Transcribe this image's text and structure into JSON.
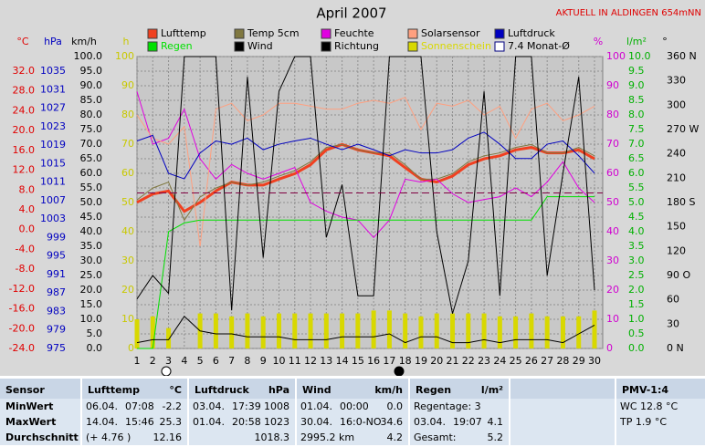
{
  "chart_data": {
    "type": "line",
    "title": "April 2007",
    "annotation": "AKTUELL IN ALDINGEN 654mNN",
    "x": [
      1,
      2,
      3,
      4,
      5,
      6,
      7,
      8,
      9,
      10,
      11,
      12,
      13,
      14,
      15,
      16,
      17,
      18,
      19,
      20,
      21,
      22,
      23,
      24,
      25,
      26,
      27,
      28,
      29,
      30
    ],
    "xlim": [
      1,
      30
    ],
    "xticks": [
      1,
      2,
      3,
      4,
      5,
      6,
      7,
      8,
      9,
      10,
      11,
      12,
      13,
      14,
      15,
      16,
      17,
      18,
      19,
      20,
      21,
      22,
      23,
      24,
      25,
      26,
      27,
      28,
      29,
      30
    ],
    "grid": true,
    "axes": {
      "temp": {
        "label": "°C",
        "color": "#e00000",
        "lim": [
          -24,
          32
        ],
        "ticks": [
          {
            "value": 32,
            "label": "32.0"
          },
          {
            "value": 28,
            "label": "28.0"
          },
          {
            "value": 24,
            "label": "24.0"
          },
          {
            "value": 20,
            "label": "20.0"
          },
          {
            "value": 16,
            "label": "16.0"
          },
          {
            "value": 12,
            "label": "12.0"
          },
          {
            "value": 8,
            "label": "8.0"
          },
          {
            "value": 4,
            "label": "4.0"
          },
          {
            "value": 0,
            "label": "0.0"
          },
          {
            "value": -4,
            "label": "-4.0"
          },
          {
            "value": -8,
            "label": "-8.0"
          },
          {
            "value": -12,
            "label": "-12.0"
          },
          {
            "value": -16,
            "label": "-16.0"
          },
          {
            "value": -20,
            "label": "-20.0"
          },
          {
            "value": -24,
            "label": "-24.0"
          }
        ]
      },
      "hpa": {
        "label": "hPa",
        "color": "#0000c0",
        "lim": [
          975,
          1035
        ],
        "ticks": [
          1035,
          1031,
          1027,
          1023,
          1019,
          1015,
          1011,
          1007,
          1003,
          999,
          995,
          991,
          987,
          983,
          979,
          975
        ]
      },
      "kmh": {
        "label": "km/h",
        "color": "#000000",
        "lim": [
          0,
          100
        ],
        "ticks": [
          {
            "value": 100,
            "label": "100.0"
          },
          {
            "value": 95,
            "label": "95.0"
          },
          {
            "value": 90,
            "label": "90.0"
          },
          {
            "value": 85,
            "label": "85.0"
          },
          {
            "value": 80,
            "label": "80.0"
          },
          {
            "value": 75,
            "label": "75.0"
          },
          {
            "value": 70,
            "label": "70.0"
          },
          {
            "value": 65,
            "label": "65.0"
          },
          {
            "value": 60,
            "label": "60.0"
          },
          {
            "value": 55,
            "label": "55.0"
          },
          {
            "value": 50,
            "label": "50.0"
          },
          {
            "value": 45,
            "label": "45.0"
          },
          {
            "value": 40,
            "label": "40.0"
          },
          {
            "value": 35,
            "label": "35.0"
          },
          {
            "value": 30,
            "label": "30.0"
          },
          {
            "value": 25,
            "label": "25.0"
          },
          {
            "value": 20,
            "label": "20.0"
          },
          {
            "value": 15,
            "label": "15.0"
          },
          {
            "value": 10,
            "label": "10.0"
          },
          {
            "value": 5,
            "label": "5.0"
          },
          {
            "value": 0,
            "label": "0.0"
          }
        ]
      },
      "h": {
        "label": "h",
        "color": "#c8c800",
        "lim": [
          0,
          100
        ],
        "ticks": [
          100,
          90,
          80,
          70,
          60,
          50,
          40,
          30,
          20,
          10,
          0
        ]
      },
      "pct": {
        "label": "%",
        "color": "#d000d0",
        "lim": [
          0,
          100
        ],
        "ticks": [
          100,
          90,
          80,
          70,
          60,
          50,
          40,
          30,
          20,
          10,
          0
        ]
      },
      "lm2": {
        "label": "l/m²",
        "color": "#00b000",
        "lim": [
          0,
          10
        ],
        "ticks": [
          {
            "value": 10,
            "label": "10.0"
          },
          {
            "value": 9.5,
            "label": "9.5"
          },
          {
            "value": 9,
            "label": "9.0"
          },
          {
            "value": 8.5,
            "label": "8.5"
          },
          {
            "value": 8,
            "label": "8.0"
          },
          {
            "value": 7.5,
            "label": "7.5"
          },
          {
            "value": 7,
            "label": "7.0"
          },
          {
            "value": 6.5,
            "label": "6.5"
          },
          {
            "value": 6,
            "label": "6.0"
          },
          {
            "value": 5.5,
            "label": "5.5"
          },
          {
            "value": 5,
            "label": "5.0"
          },
          {
            "value": 4.5,
            "label": "4.5"
          },
          {
            "value": 4,
            "label": "4.0"
          },
          {
            "value": 3.5,
            "label": "3.5"
          },
          {
            "value": 3,
            "label": "3.0"
          },
          {
            "value": 2.5,
            "label": "2.5"
          },
          {
            "value": 2,
            "label": "2.0"
          },
          {
            "value": 1.5,
            "label": "1.5"
          },
          {
            "value": 1,
            "label": "1.0"
          },
          {
            "value": 0.5,
            "label": "0.5"
          },
          {
            "value": 0,
            "label": "0.0"
          }
        ]
      },
      "deg": {
        "label": "°",
        "color": "#000000",
        "lim": [
          0,
          360
        ],
        "ticks": [
          {
            "value": 360,
            "label": "360 N"
          },
          330,
          300,
          {
            "value": 270,
            "label": "270 W"
          },
          240,
          210,
          {
            "value": 180,
            "label": "180 S"
          },
          150,
          120,
          {
            "value": 90,
            "label": "90 O"
          },
          60,
          30,
          {
            "value": 0,
            "label": "0 N"
          }
        ]
      }
    },
    "series": [
      {
        "name": "Lufttemp",
        "color": "#f04020",
        "axis": "temp",
        "width": 3,
        "values": [
          5.5,
          7.2,
          7.8,
          3.7,
          5.5,
          7.8,
          9.6,
          9.0,
          9.0,
          10.2,
          11.3,
          13.1,
          16.1,
          17.2,
          16.1,
          15.5,
          14.9,
          12.5,
          10.2,
          9.6,
          10.8,
          13.1,
          14.3,
          14.9,
          16.1,
          16.6,
          15.5,
          15.5,
          16.1,
          14.3
        ]
      },
      {
        "name": "Temp 5cm",
        "color": "#807840",
        "axis": "temp",
        "width": 1,
        "values": [
          6.0,
          8.4,
          9.6,
          1.9,
          6.6,
          8.4,
          9.6,
          9.0,
          9.6,
          10.8,
          11.9,
          13.7,
          16.6,
          17.2,
          16.1,
          15.5,
          15.5,
          13.1,
          10.2,
          10.2,
          11.3,
          13.7,
          14.9,
          15.5,
          16.6,
          17.2,
          15.5,
          15.5,
          16.6,
          14.9
        ]
      },
      {
        "name": "Feuchte",
        "color": "#e000e0",
        "axis": "pct",
        "width": 1,
        "values": [
          88,
          70,
          72,
          82,
          65,
          58,
          63,
          60,
          58,
          60,
          62,
          50,
          47,
          45,
          44,
          38,
          44,
          58,
          57,
          58,
          53,
          50,
          51,
          52,
          55,
          52,
          57,
          64,
          55,
          50
        ]
      },
      {
        "name": "Solarsensor",
        "color": "#ffa080",
        "axis": "pct",
        "width": 1,
        "values": [
          80,
          72,
          70,
          76,
          35,
          82,
          84,
          78,
          80,
          84,
          84,
          83,
          82,
          82,
          84,
          85,
          84,
          86,
          75,
          84,
          83,
          85,
          80,
          83,
          72,
          82,
          84,
          78,
          80,
          83
        ]
      },
      {
        "name": "Luftdruck",
        "color": "#0000c0",
        "axis": "hpa",
        "width": 1,
        "values": [
          1019.9,
          1021.1,
          1012.9,
          1011.7,
          1017.3,
          1019.9,
          1019.2,
          1020.5,
          1018.0,
          1019.2,
          1019.9,
          1020.5,
          1019.2,
          1018.0,
          1019.2,
          1018.0,
          1016.7,
          1018.0,
          1017.3,
          1017.3,
          1018.0,
          1020.5,
          1021.8,
          1019.2,
          1016.1,
          1016.1,
          1019.2,
          1019.9,
          1016.7,
          1012.9
        ]
      },
      {
        "name": "Regen",
        "color": "#00e000",
        "axis": "lm2",
        "width": 1,
        "values": [
          0,
          0,
          4.0,
          4.3,
          4.4,
          4.4,
          4.4,
          4.4,
          4.4,
          4.4,
          4.4,
          4.4,
          4.4,
          4.4,
          4.4,
          4.4,
          4.4,
          4.4,
          4.4,
          4.4,
          4.4,
          4.4,
          4.4,
          4.4,
          4.4,
          4.4,
          5.2,
          5.2,
          5.2,
          5.2
        ]
      },
      {
        "name": "Wind",
        "color": "#000000",
        "axis": "kmh",
        "width": 1,
        "values": [
          2,
          3,
          3,
          11,
          6,
          5,
          5,
          4,
          4,
          4,
          3,
          3,
          3,
          4,
          4,
          4,
          5,
          2,
          4,
          4,
          2,
          2,
          3,
          2,
          3,
          3,
          3,
          2,
          5,
          8
        ]
      },
      {
        "name": "Richtung",
        "color": "#000000",
        "axis": "deg",
        "width": 1,
        "values": [
          61,
          90,
          68,
          360,
          360,
          360,
          47,
          335,
          112,
          317,
          360,
          360,
          137,
          202,
          65,
          65,
          360,
          360,
          360,
          144,
          43,
          108,
          317,
          65,
          360,
          360,
          90,
          216,
          335,
          72
        ]
      },
      {
        "name": "Sonnenschein",
        "color": "#d8d800",
        "axis": "h",
        "kind": "bar",
        "values": [
          10,
          11,
          7,
          0,
          12,
          12,
          11,
          12,
          11,
          12,
          12,
          12,
          12,
          12,
          12,
          13,
          13,
          12,
          11,
          12,
          12,
          12,
          12,
          11,
          11,
          12,
          11,
          11,
          11,
          13
        ]
      },
      {
        "name": "7.4 Monat-Ø",
        "color": "#800040",
        "legend_color": "#ffffff",
        "axis": "temp",
        "kind": "level",
        "value": 7.4
      }
    ]
  },
  "table": {
    "columns": [
      {
        "title": "Sensor"
      },
      {
        "title": "Lufttemp",
        "unit": "°C"
      },
      {
        "title": "Luftdruck",
        "unit": "hPa"
      },
      {
        "title": "Wind",
        "unit": "km/h"
      },
      {
        "title": "Regen",
        "unit": "l/m²"
      },
      {},
      {
        "title": "PMV-1:4"
      }
    ],
    "rows": [
      {
        "label": "MinWert",
        "cells": [
          {
            "text": [
              "06.04.",
              "07:08"
            ],
            "value": "-2.2"
          },
          {
            "text": [
              "03.04.",
              "17:39"
            ],
            "value": "1008"
          },
          {
            "text": [
              "01.04.",
              "00:00"
            ],
            "value": "0.0"
          },
          {
            "text": [
              "Regentage: 3"
            ]
          },
          {},
          {
            "text": [
              "WC 12.8 °C"
            ]
          }
        ]
      },
      {
        "label": "MaxWert",
        "cells": [
          {
            "text": [
              "14.04.",
              "15:46"
            ],
            "value": "25.3"
          },
          {
            "text": [
              "01.04.",
              "20:58"
            ],
            "value": "1023"
          },
          {
            "text": [
              "30.04.",
              "16:0-NO"
            ],
            "value": "34.6"
          },
          {
            "text": [
              "03.04.",
              "19:07"
            ],
            "value": "4.1"
          },
          {},
          {
            "text": [
              "TP 1.9 °C"
            ]
          }
        ]
      },
      {
        "label": "Durchschnitt",
        "cells": [
          {
            "text": [
              "(+ 4.76 )"
            ],
            "value": "12.16"
          },
          {
            "value": "1018.3"
          },
          {
            "text": [
              "2995.2 km"
            ],
            "value": "4.2"
          },
          {
            "text": [
              "Gesamt:"
            ],
            "value": "5.2"
          },
          {},
          {}
        ]
      }
    ]
  }
}
